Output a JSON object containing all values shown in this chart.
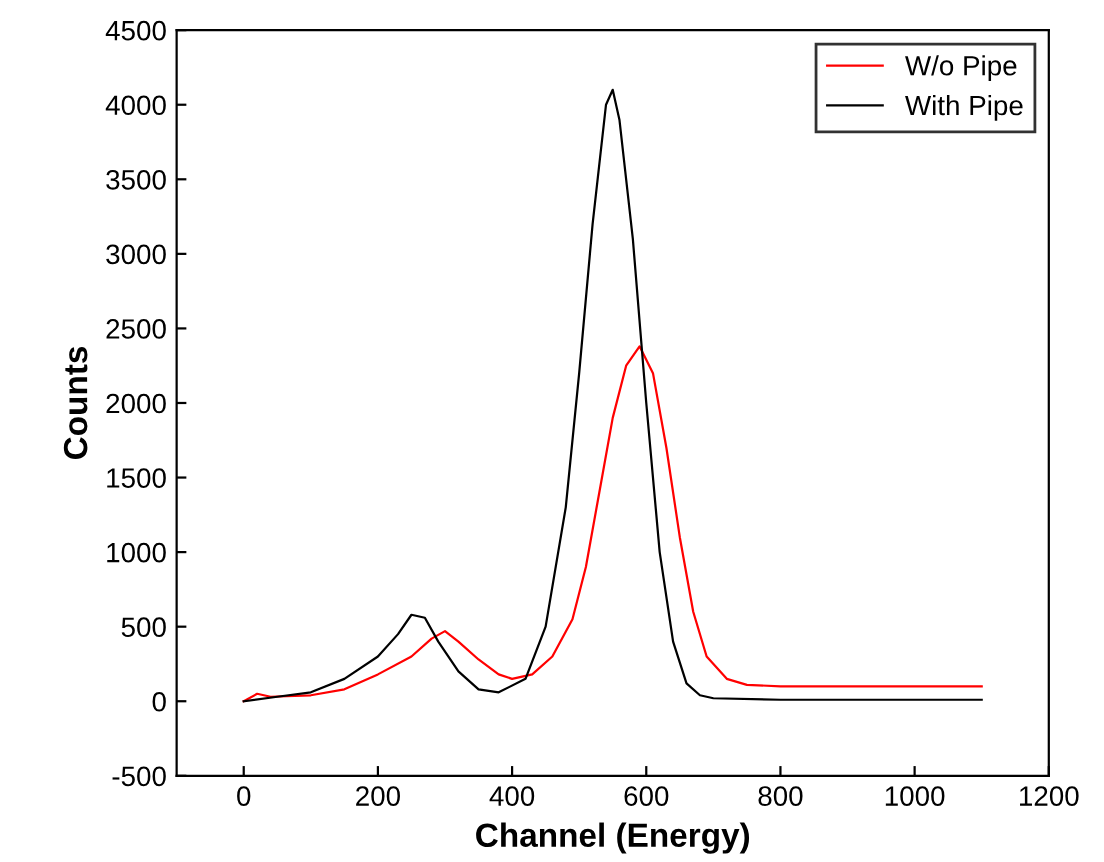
{
  "chart_data": {
    "type": "line",
    "xlabel": "Channel (Energy)",
    "ylabel": "Counts",
    "xlim": [
      -100,
      1200
    ],
    "xticks": [
      0,
      200,
      400,
      600,
      800,
      1000,
      1200
    ],
    "ylim": [
      -500,
      4500
    ],
    "yticks": [
      -500,
      0,
      500,
      1000,
      1500,
      2000,
      2500,
      3000,
      3500,
      4000,
      4500
    ],
    "grid": false,
    "legend": "top right",
    "marker": "none",
    "line_style": "solid",
    "series": [
      {
        "name": "W/o Pipe",
        "color": "#ff0000",
        "x": [
          0,
          20,
          40,
          100,
          150,
          200,
          250,
          280,
          300,
          320,
          350,
          380,
          400,
          430,
          460,
          490,
          510,
          530,
          550,
          570,
          590,
          610,
          630,
          650,
          670,
          690,
          720,
          750,
          800,
          900,
          1000,
          1100
        ],
        "values": [
          0,
          50,
          30,
          40,
          80,
          180,
          300,
          420,
          470,
          400,
          280,
          180,
          150,
          180,
          300,
          550,
          900,
          1400,
          1900,
          2250,
          2380,
          2200,
          1700,
          1100,
          600,
          300,
          150,
          110,
          100,
          100,
          100,
          100
        ]
      },
      {
        "name": "With Pipe",
        "color": "#000000",
        "x": [
          0,
          50,
          100,
          150,
          200,
          230,
          250,
          270,
          290,
          320,
          350,
          380,
          420,
          450,
          480,
          500,
          520,
          540,
          550,
          560,
          580,
          600,
          620,
          640,
          660,
          680,
          700,
          800,
          1000,
          1100
        ],
        "values": [
          0,
          30,
          60,
          150,
          300,
          450,
          580,
          560,
          400,
          200,
          80,
          60,
          150,
          500,
          1300,
          2200,
          3200,
          4000,
          4100,
          3900,
          3100,
          2000,
          1000,
          400,
          120,
          40,
          20,
          10,
          10,
          10
        ]
      }
    ]
  }
}
